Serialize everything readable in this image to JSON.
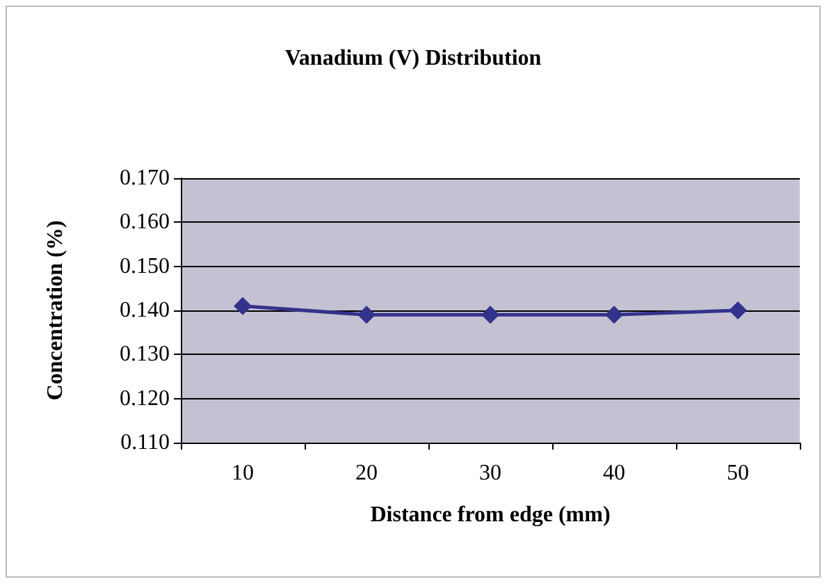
{
  "chart_data": {
    "type": "line",
    "title": "Vanadium (V) Distribution",
    "xlabel": "Distance from edge (mm)",
    "ylabel": "Concentration (%)",
    "categories": [
      "10",
      "20",
      "30",
      "40",
      "50"
    ],
    "series": [
      {
        "color": "#33338c",
        "values": [
          0.141,
          0.139,
          0.139,
          0.139,
          0.14
        ]
      }
    ],
    "ylim": [
      0.11,
      0.17
    ],
    "yticks": [
      {
        "value": 0.11,
        "label": "0.110"
      },
      {
        "value": 0.12,
        "label": "0.120"
      },
      {
        "value": 0.13,
        "label": "0.130"
      },
      {
        "value": 0.14,
        "label": "0.140"
      },
      {
        "value": 0.15,
        "label": "0.150"
      },
      {
        "value": 0.16,
        "label": "0.160"
      },
      {
        "value": 0.17,
        "label": "0.170"
      }
    ],
    "grid": "y",
    "marker": "diamond",
    "line_style": "solid"
  }
}
